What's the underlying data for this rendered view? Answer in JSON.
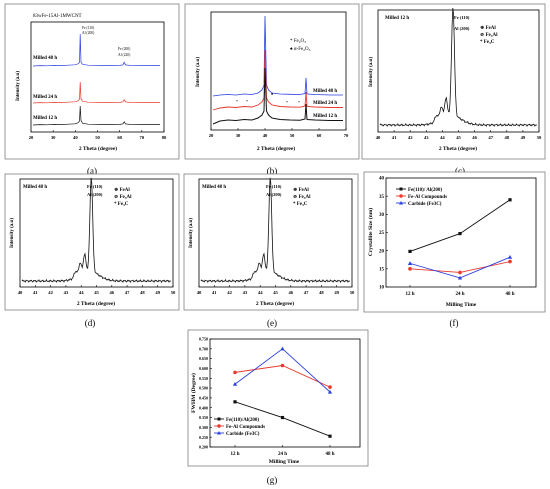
{
  "colors": {
    "black": "#111111",
    "red": "#e8392c",
    "blue": "#2a3fe0",
    "frame": "#7f7f7f"
  },
  "panel_letters": {
    "a": "(a)",
    "b": "(b)",
    "c": "(c)",
    "d": "(d)",
    "e": "(e)",
    "f": "(f)",
    "g": "(g)"
  },
  "chart_data": [
    {
      "id": "a",
      "type": "line",
      "title": "83wFe-15Al-1MWCNT",
      "xlabel": "2 Theta (degree)",
      "ylabel": "Intensity (a.u)",
      "xlim": [
        20,
        80
      ],
      "xticks": [
        "20",
        "30",
        "40",
        "50",
        "60",
        "70",
        "80"
      ],
      "series": [
        {
          "name": "Milled 48 h",
          "color": "blue"
        },
        {
          "name": "Milled 24 h",
          "color": "red"
        },
        {
          "name": "Milled 12 h",
          "color": "black"
        }
      ],
      "annotations": [
        "Fe (110)",
        "Al (200)",
        "Fe (200)",
        "Al (220)"
      ]
    },
    {
      "id": "b",
      "type": "line",
      "xlabel": "2 Theta (degree)",
      "ylabel": "Intensity (a.u)",
      "xlim": [
        20,
        70
      ],
      "xticks": [
        "20",
        "30",
        "40",
        "50",
        "60",
        "70"
      ],
      "legend": [
        "Fe2O3",
        "α-Fe2O3"
      ],
      "series": [
        {
          "name": "Milled 48 h",
          "color": "blue"
        },
        {
          "name": "Milled 24 h",
          "color": "red"
        },
        {
          "name": "Milled 12 h",
          "color": "black"
        }
      ]
    },
    {
      "id": "c",
      "type": "line",
      "xlabel": "2 Theta (degree)",
      "ylabel": "Intensity (a.u)",
      "xlim": [
        40,
        50
      ],
      "xticks": [
        "40",
        "41",
        "42",
        "43",
        "44",
        "45",
        "46",
        "47",
        "48",
        "49",
        "50"
      ],
      "series": [
        {
          "name": "Milled 12 h",
          "color": "black"
        }
      ],
      "legend": [
        "FeAl",
        "Fe3Al",
        "Fe3C"
      ],
      "peak_label": [
        "Fe (110)",
        "Al (200)"
      ]
    },
    {
      "id": "d",
      "type": "line",
      "xlabel": "2 Theta (degree)",
      "ylabel": "Intensity (a.u)",
      "xlim": [
        40,
        50
      ],
      "xticks": [
        "40",
        "41",
        "42",
        "43",
        "44",
        "45",
        "46",
        "47",
        "48",
        "49",
        "50"
      ],
      "series": [
        {
          "name": "Milled 48 h",
          "color": "black"
        }
      ],
      "legend": [
        "FeAl",
        "Fe3Al",
        "Fe3C"
      ],
      "peak_label": [
        "Fe (110)",
        "Al (200)"
      ]
    },
    {
      "id": "e",
      "type": "line",
      "xlabel": "2 Theta (degree)",
      "ylabel": "Intensity (a.u)",
      "xlim": [
        40,
        50
      ],
      "xticks": [
        "40",
        "41",
        "42",
        "43",
        "44",
        "45",
        "46",
        "47",
        "48",
        "49",
        "50"
      ],
      "series": [
        {
          "name": "Milled 48 h",
          "color": "black"
        }
      ],
      "legend": [
        "FeAl",
        "Fe3Al",
        "Fe3C"
      ],
      "peak_label": [
        "Fe (110)",
        "Al (200)"
      ]
    },
    {
      "id": "f",
      "type": "line",
      "xlabel": "Milling Time",
      "ylabel": "Crystallite Size (nm)",
      "categories": [
        "12 h",
        "24 h",
        "48 h"
      ],
      "ylim": [
        10,
        40
      ],
      "yticks": [
        "10",
        "15",
        "20",
        "25",
        "30",
        "35",
        "40"
      ],
      "legend_position": "top-left",
      "series": [
        {
          "name": "Fe(110)/ Al(200)",
          "color": "black",
          "marker": "square",
          "values": [
            19.8,
            24.7,
            34.0
          ]
        },
        {
          "name": "Fe-Al Compounds",
          "color": "red",
          "marker": "circle",
          "values": [
            15.0,
            14.0,
            17.0
          ]
        },
        {
          "name": "Carbide (Fe3C)",
          "color": "blue",
          "marker": "triangle",
          "values": [
            16.5,
            12.5,
            18.2
          ]
        }
      ]
    },
    {
      "id": "g",
      "type": "line",
      "xlabel": "Milling Time",
      "ylabel": "FWHM (Degree)",
      "categories": [
        "12 h",
        "24 h",
        "48 h"
      ],
      "ylim": [
        0.2,
        0.75
      ],
      "yticks": [
        "0.200",
        "0.250",
        "0.300",
        "0.350",
        "0.400",
        "0.450",
        "0.500",
        "0.550",
        "0.600",
        "0.650",
        "0.700",
        "0.750"
      ],
      "legend_position": "bottom-left",
      "series": [
        {
          "name": "Fe(110)/Al(200)",
          "color": "black",
          "marker": "square",
          "values": [
            0.43,
            0.35,
            0.255
          ]
        },
        {
          "name": "Fe-Al Compounds",
          "color": "red",
          "marker": "circle",
          "values": [
            0.58,
            0.615,
            0.505
          ]
        },
        {
          "name": "Carbide (Fe3C)",
          "color": "blue",
          "marker": "triangle",
          "values": [
            0.52,
            0.7,
            0.48
          ]
        }
      ]
    }
  ]
}
